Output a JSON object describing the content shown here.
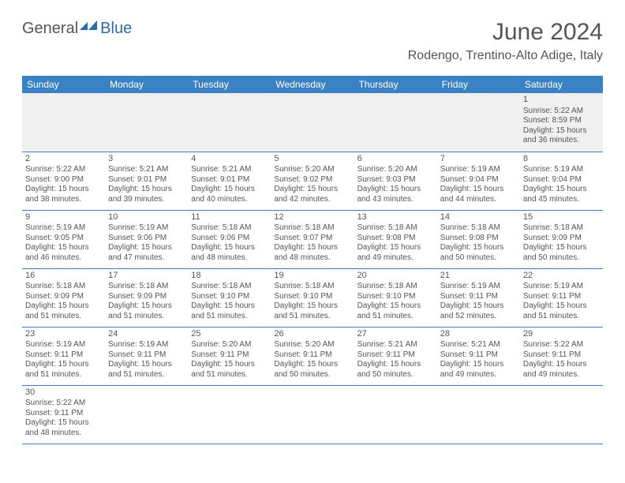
{
  "logo": {
    "general": "General",
    "blue": "Blue"
  },
  "title": "June 2024",
  "location": "Rodengo, Trentino-Alto Adige, Italy",
  "colors": {
    "header_bg": "#3b82c4",
    "header_text": "#ffffff",
    "text": "#555555",
    "border": "#3b82c4",
    "empty_bg": "#f0f0f0",
    "logo_blue": "#2f6aa8"
  },
  "day_headers": [
    "Sunday",
    "Monday",
    "Tuesday",
    "Wednesday",
    "Thursday",
    "Friday",
    "Saturday"
  ],
  "weeks": [
    [
      null,
      null,
      null,
      null,
      null,
      null,
      {
        "n": "1",
        "sr": "5:22 AM",
        "ss": "8:59 PM",
        "dl": "15 hours and 36 minutes."
      }
    ],
    [
      {
        "n": "2",
        "sr": "5:22 AM",
        "ss": "9:00 PM",
        "dl": "15 hours and 38 minutes."
      },
      {
        "n": "3",
        "sr": "5:21 AM",
        "ss": "9:01 PM",
        "dl": "15 hours and 39 minutes."
      },
      {
        "n": "4",
        "sr": "5:21 AM",
        "ss": "9:01 PM",
        "dl": "15 hours and 40 minutes."
      },
      {
        "n": "5",
        "sr": "5:20 AM",
        "ss": "9:02 PM",
        "dl": "15 hours and 42 minutes."
      },
      {
        "n": "6",
        "sr": "5:20 AM",
        "ss": "9:03 PM",
        "dl": "15 hours and 43 minutes."
      },
      {
        "n": "7",
        "sr": "5:19 AM",
        "ss": "9:04 PM",
        "dl": "15 hours and 44 minutes."
      },
      {
        "n": "8",
        "sr": "5:19 AM",
        "ss": "9:04 PM",
        "dl": "15 hours and 45 minutes."
      }
    ],
    [
      {
        "n": "9",
        "sr": "5:19 AM",
        "ss": "9:05 PM",
        "dl": "15 hours and 46 minutes."
      },
      {
        "n": "10",
        "sr": "5:19 AM",
        "ss": "9:06 PM",
        "dl": "15 hours and 47 minutes."
      },
      {
        "n": "11",
        "sr": "5:18 AM",
        "ss": "9:06 PM",
        "dl": "15 hours and 48 minutes."
      },
      {
        "n": "12",
        "sr": "5:18 AM",
        "ss": "9:07 PM",
        "dl": "15 hours and 48 minutes."
      },
      {
        "n": "13",
        "sr": "5:18 AM",
        "ss": "9:08 PM",
        "dl": "15 hours and 49 minutes."
      },
      {
        "n": "14",
        "sr": "5:18 AM",
        "ss": "9:08 PM",
        "dl": "15 hours and 50 minutes."
      },
      {
        "n": "15",
        "sr": "5:18 AM",
        "ss": "9:09 PM",
        "dl": "15 hours and 50 minutes."
      }
    ],
    [
      {
        "n": "16",
        "sr": "5:18 AM",
        "ss": "9:09 PM",
        "dl": "15 hours and 51 minutes."
      },
      {
        "n": "17",
        "sr": "5:18 AM",
        "ss": "9:09 PM",
        "dl": "15 hours and 51 minutes."
      },
      {
        "n": "18",
        "sr": "5:18 AM",
        "ss": "9:10 PM",
        "dl": "15 hours and 51 minutes."
      },
      {
        "n": "19",
        "sr": "5:18 AM",
        "ss": "9:10 PM",
        "dl": "15 hours and 51 minutes."
      },
      {
        "n": "20",
        "sr": "5:18 AM",
        "ss": "9:10 PM",
        "dl": "15 hours and 51 minutes."
      },
      {
        "n": "21",
        "sr": "5:19 AM",
        "ss": "9:11 PM",
        "dl": "15 hours and 52 minutes."
      },
      {
        "n": "22",
        "sr": "5:19 AM",
        "ss": "9:11 PM",
        "dl": "15 hours and 51 minutes."
      }
    ],
    [
      {
        "n": "23",
        "sr": "5:19 AM",
        "ss": "9:11 PM",
        "dl": "15 hours and 51 minutes."
      },
      {
        "n": "24",
        "sr": "5:19 AM",
        "ss": "9:11 PM",
        "dl": "15 hours and 51 minutes."
      },
      {
        "n": "25",
        "sr": "5:20 AM",
        "ss": "9:11 PM",
        "dl": "15 hours and 51 minutes."
      },
      {
        "n": "26",
        "sr": "5:20 AM",
        "ss": "9:11 PM",
        "dl": "15 hours and 50 minutes."
      },
      {
        "n": "27",
        "sr": "5:21 AM",
        "ss": "9:11 PM",
        "dl": "15 hours and 50 minutes."
      },
      {
        "n": "28",
        "sr": "5:21 AM",
        "ss": "9:11 PM",
        "dl": "15 hours and 49 minutes."
      },
      {
        "n": "29",
        "sr": "5:22 AM",
        "ss": "9:11 PM",
        "dl": "15 hours and 49 minutes."
      }
    ],
    [
      {
        "n": "30",
        "sr": "5:22 AM",
        "ss": "9:11 PM",
        "dl": "15 hours and 48 minutes."
      },
      null,
      null,
      null,
      null,
      null,
      null
    ]
  ],
  "labels": {
    "sunrise": "Sunrise:",
    "sunset": "Sunset:",
    "daylight": "Daylight:"
  }
}
